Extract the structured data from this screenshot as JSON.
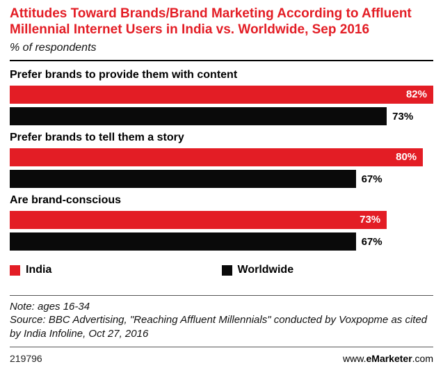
{
  "header": {
    "title": "Attitudes Toward Brands/Brand Marketing According to Affluent Millennial Internet Users in India vs. Worldwide, Sep 2016",
    "subtitle": "% of respondents"
  },
  "chart_data": {
    "type": "bar",
    "orientation": "horizontal",
    "title": "Attitudes Toward Brands/Brand Marketing According to Affluent Millennial Internet Users in India vs. Worldwide, Sep 2016",
    "subtitle": "% of respondents",
    "categories": [
      "Prefer brands to provide them with content",
      "Prefer brands to tell them a story",
      "Are brand-conscious"
    ],
    "series": [
      {
        "name": "India",
        "color": "#e31d25",
        "values": [
          82,
          80,
          73
        ]
      },
      {
        "name": "Worldwide",
        "color": "#0a0a0a",
        "values": [
          73,
          67,
          67
        ]
      }
    ],
    "value_suffix": "%",
    "xlim": [
      0,
      82
    ],
    "grid": false,
    "legend_position": "bottom"
  },
  "footer": {
    "note": "Note: ages 16-34",
    "source": "Source: BBC Advertising, \"Reaching Affluent Millennials\" conducted by Voxpopme as cited by India Infoline, Oct 27, 2016",
    "chart_id": "219796",
    "website_prefix": "www.",
    "website_name": "eMarketer",
    "website_suffix": ".com"
  }
}
